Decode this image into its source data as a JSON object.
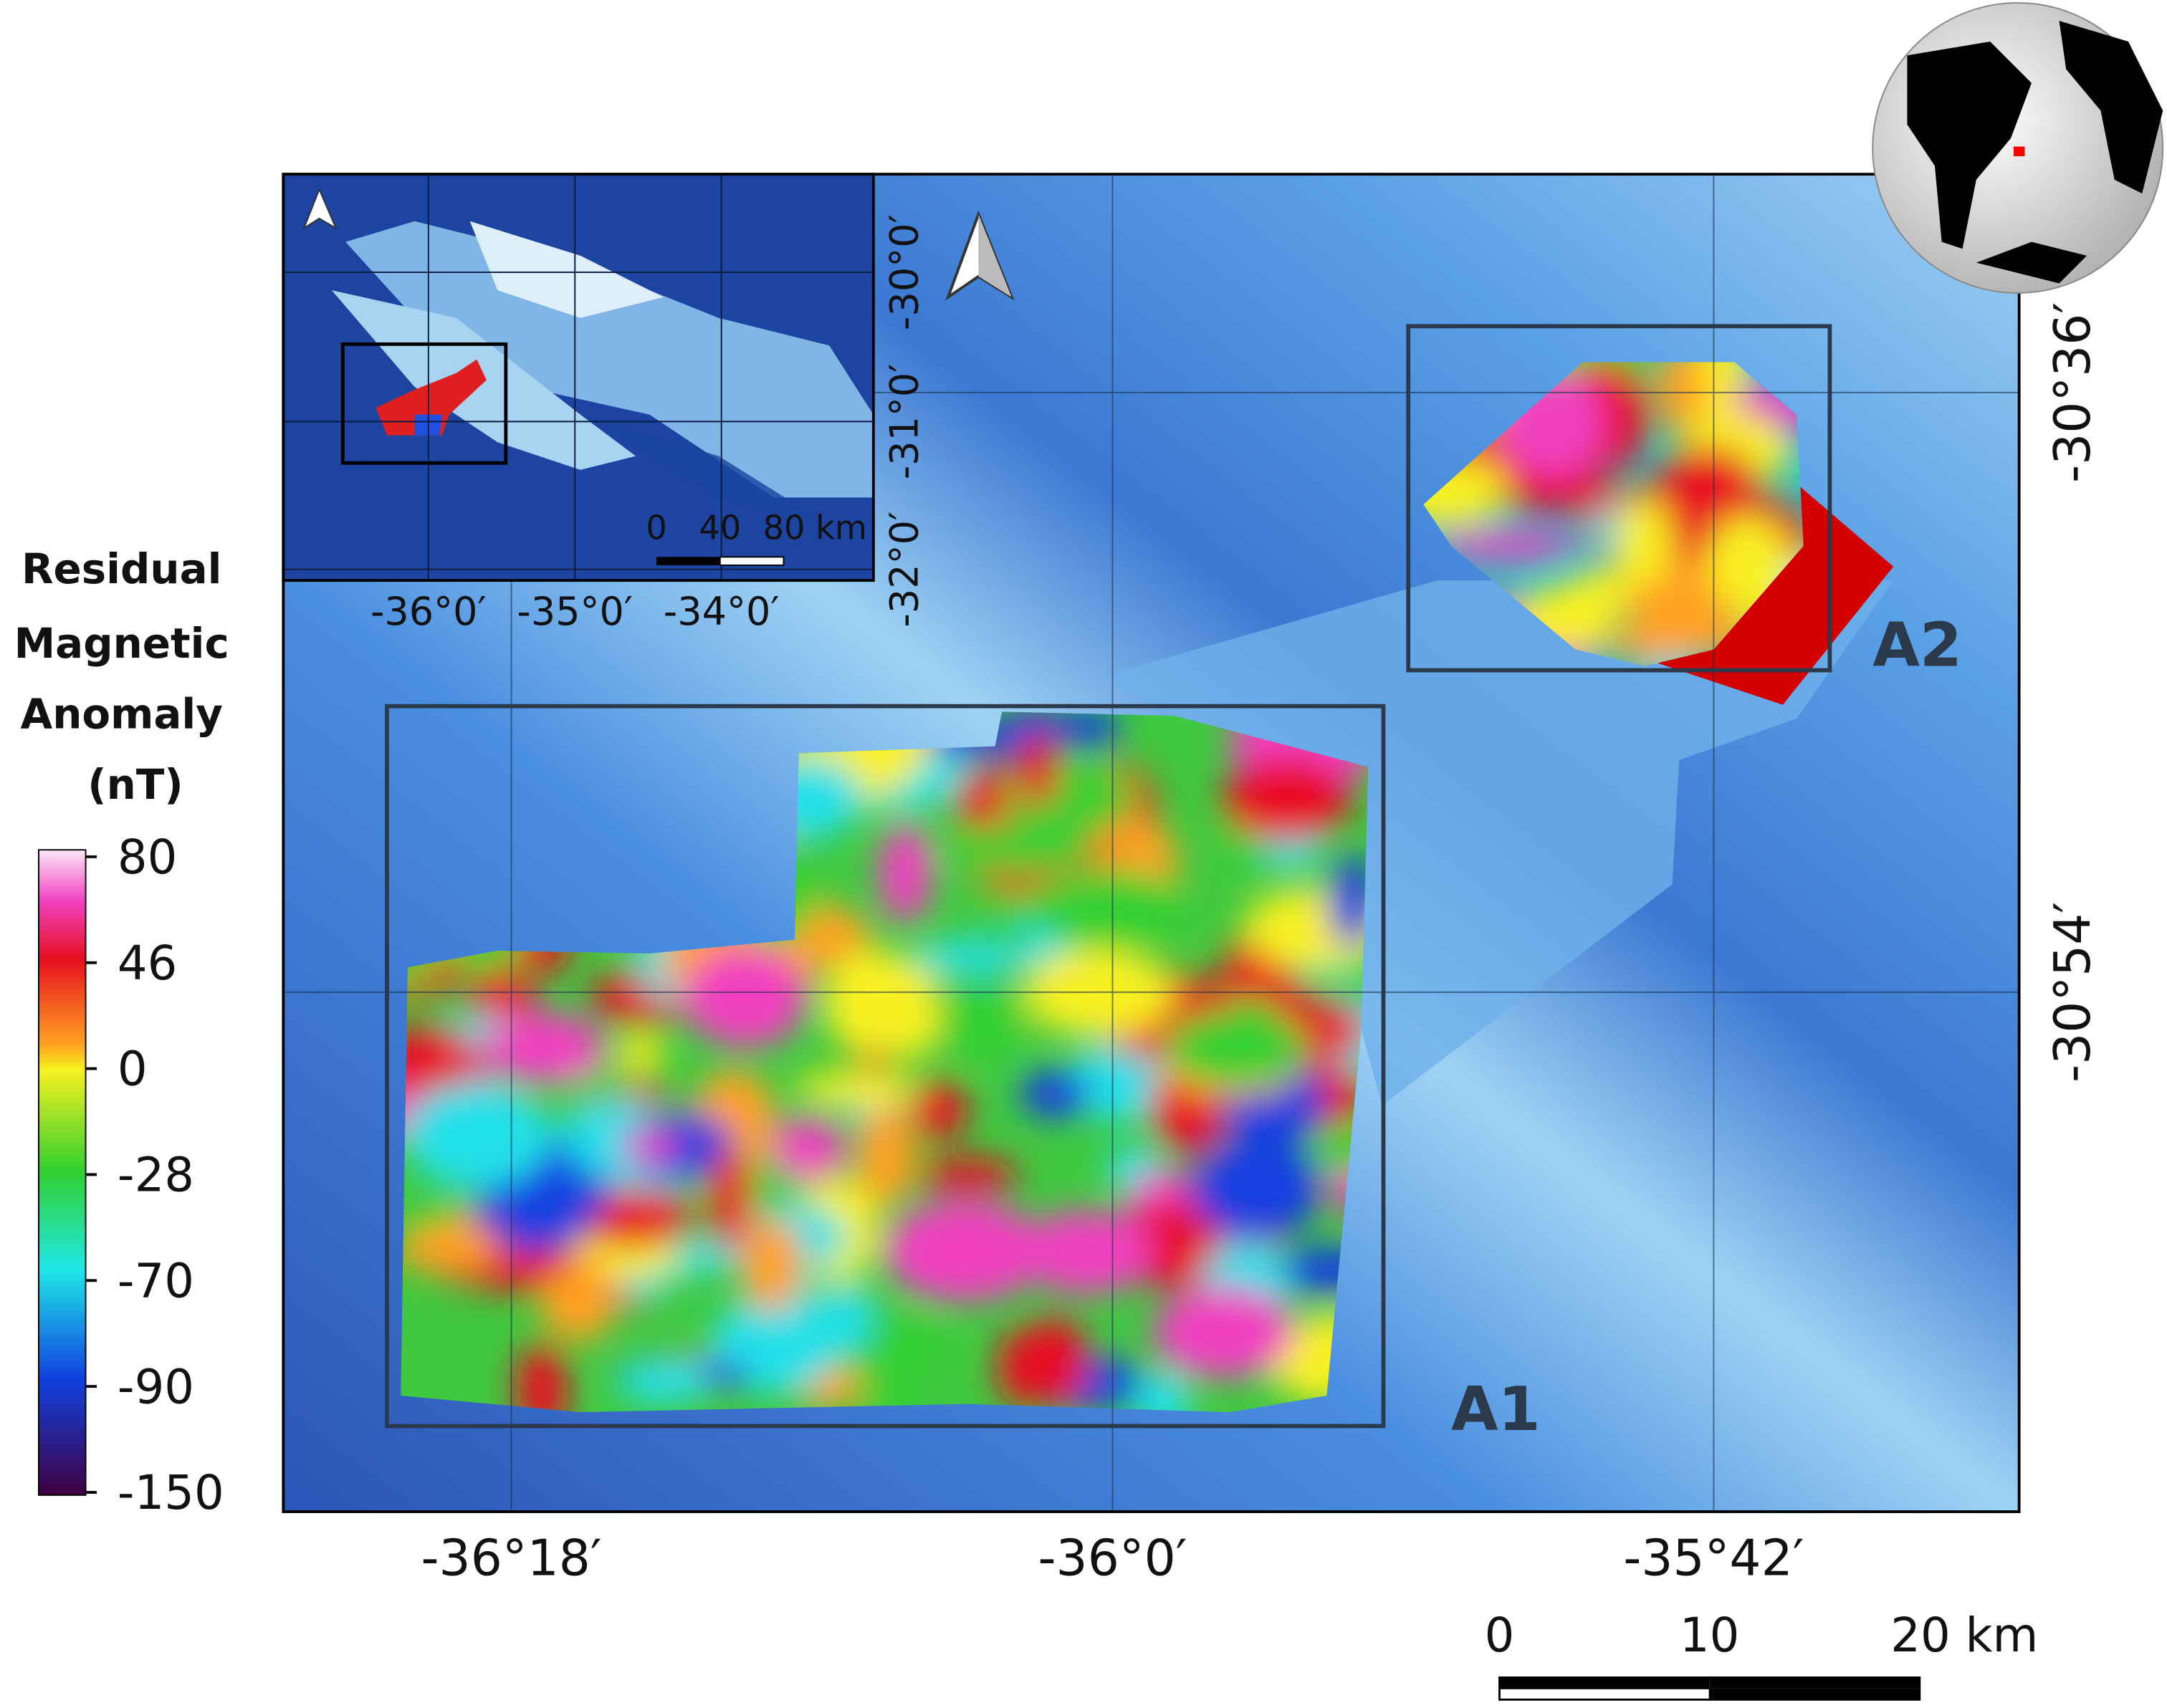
{
  "colorbar": {
    "title": [
      "Residual",
      "Magnetic",
      "Anomaly",
      "(nT)"
    ],
    "ticks": [
      80,
      46,
      0,
      -28,
      -70,
      -90,
      -150
    ]
  },
  "areas": [
    "A1",
    "A2"
  ],
  "axes": {
    "x": [
      "-36°18′",
      "-36°0′",
      "-35°42′"
    ],
    "y": [
      "-30°36′",
      "-30°54′"
    ]
  },
  "inset": {
    "x": [
      "-36°0′",
      "-35°0′",
      "-34°0′"
    ],
    "y": [
      "-30°0′",
      "-31°0′",
      "-32°0′"
    ],
    "scale": [
      "0",
      "40",
      "80 km"
    ]
  },
  "scale_bar": [
    "0",
    "10",
    "20 km"
  ]
}
